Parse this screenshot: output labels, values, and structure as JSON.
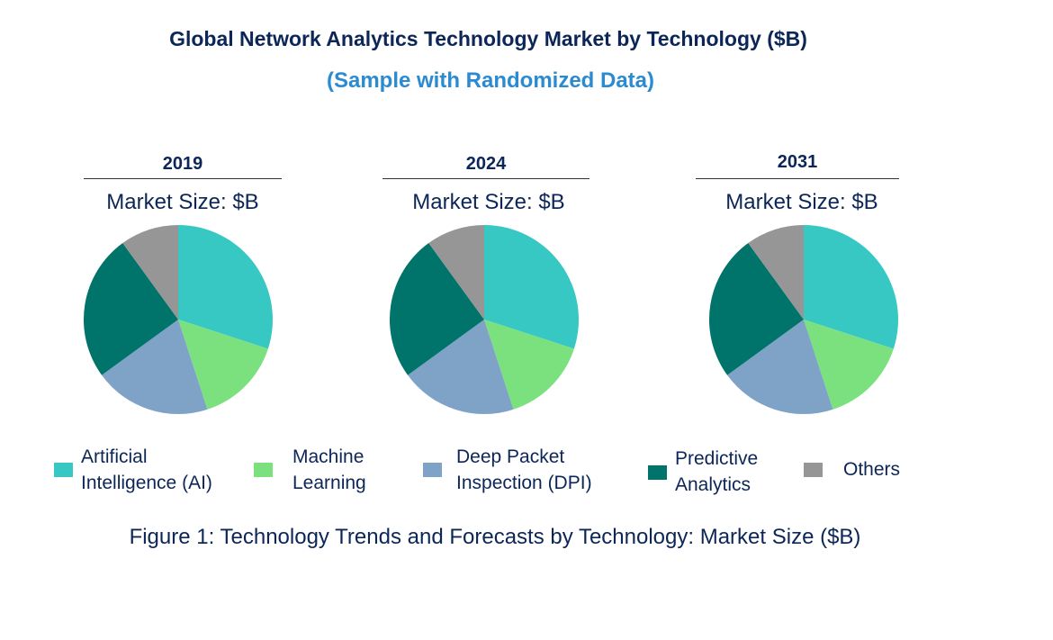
{
  "chart_data": [
    {
      "type": "pie",
      "title": "2019",
      "subtitle": "Market Size: $B",
      "categories": [
        "Artificial Intelligence (AI)",
        "Machine Learning",
        "Deep Packet Inspection (DPI)",
        "Predictive Analytics",
        "Others"
      ],
      "values": [
        30,
        15,
        20,
        25,
        10
      ]
    },
    {
      "type": "pie",
      "title": "2024",
      "subtitle": "Market Size: $B",
      "categories": [
        "Artificial Intelligence (AI)",
        "Machine Learning",
        "Deep Packet Inspection (DPI)",
        "Predictive Analytics",
        "Others"
      ],
      "values": [
        30,
        15,
        20,
        25,
        10
      ]
    },
    {
      "type": "pie",
      "title": "2031",
      "subtitle": "Market Size: $B",
      "categories": [
        "Artificial Intelligence (AI)",
        "Machine Learning",
        "Deep Packet Inspection (DPI)",
        "Predictive Analytics",
        "Others"
      ],
      "values": [
        30,
        15,
        20,
        25,
        10
      ]
    }
  ],
  "title": "Global Network Analytics Technology Market by Technology ($B)",
  "subtitle": "(Sample with Randomized Data)",
  "legend": [
    {
      "line1": "Artificial",
      "line2": "Intelligence (AI)",
      "color": "#38c8c4"
    },
    {
      "line1": "Machine",
      "line2": "Learning",
      "color": "#7be17f"
    },
    {
      "line1": "Deep Packet",
      "line2": "Inspection (DPI)",
      "color": "#7ea3c7"
    },
    {
      "line1": "Predictive",
      "line2": "Analytics",
      "color": "#00736a"
    },
    {
      "line1": "Others",
      "line2": "",
      "color": "#969696"
    }
  ],
  "caption": "Figure 1: Technology Trends and Forecasts by Technology: Market Size ($B)"
}
